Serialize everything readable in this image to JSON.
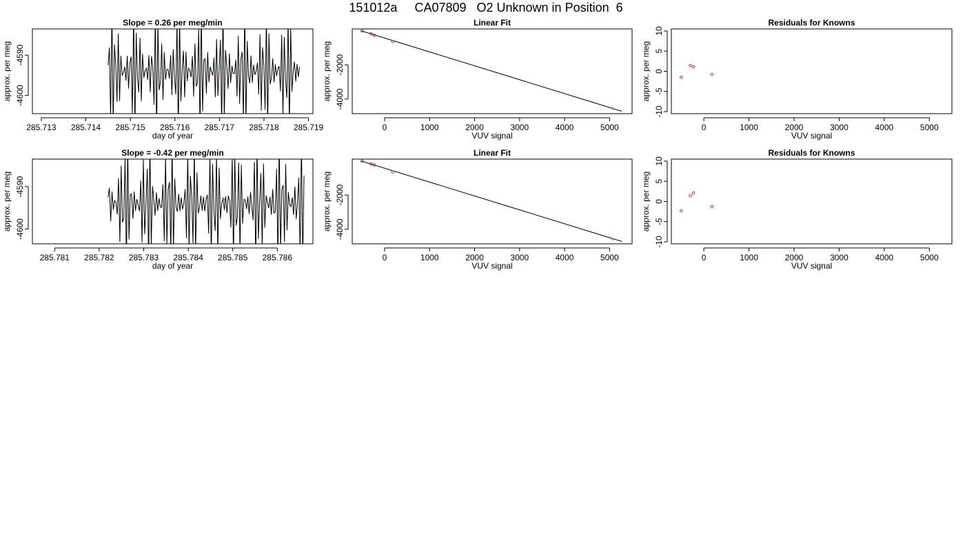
{
  "page": {
    "title": "151012a     CA07809   O2 Unknown in Position  6"
  },
  "colors": {
    "axis": "#000000",
    "trace": "#000000",
    "known_points": "#cc3333",
    "unknown_points": "#33cc33"
  },
  "chart_data": [
    {
      "type": "line",
      "title": "Slope =  0.26  per meg/min",
      "xlabel": "day of year",
      "ylabel": "approx. per meg",
      "xlim": [
        285.7128,
        285.7191
      ],
      "ylim": [
        -4604.5,
        -4583.5
      ],
      "xticks": [
        285.713,
        285.714,
        285.715,
        285.716,
        285.717,
        285.718,
        285.719
      ],
      "xtick_labels": [
        "285.713",
        "285.714",
        "285.715",
        "285.716",
        "285.717",
        "285.718",
        "285.719"
      ],
      "yticks": [
        -4590,
        -4600
      ],
      "ytick_labels": [
        "-4590",
        "-4600"
      ],
      "trace_x_range": [
        285.7145,
        285.7188
      ],
      "trace_center": -4594,
      "unknown_point": {
        "x": 285.717,
        "y": -4593
      }
    },
    {
      "type": "scatter",
      "title": "Linear Fit",
      "xlabel": "VUV signal",
      "ylabel": "approx. per meg",
      "xlim": [
        -720,
        5500
      ],
      "ylim": [
        -4850,
        100
      ],
      "xticks": [
        0,
        1000,
        2000,
        3000,
        4000,
        5000
      ],
      "xtick_labels": [
        "0",
        "1000",
        "2000",
        "3000",
        "4000",
        "5000"
      ],
      "yticks": [
        -2000,
        -4000
      ],
      "ytick_labels": [
        "-2000",
        "-4000"
      ],
      "fit_line": {
        "x": [
          -520,
          5270
        ],
        "y": [
          -10,
          -4710
        ]
      },
      "known": {
        "x": [
          -500,
          -300,
          -230,
          180
        ],
        "y": [
          -20,
          -190,
          -270,
          -640
        ]
      },
      "unknown": {
        "x": [
          5070
        ],
        "y": [
          -4560
        ]
      }
    },
    {
      "type": "scatter",
      "title": "Residuals for Knowns",
      "xlabel": "VUV signal",
      "ylabel": "approx. per meg",
      "xlim": [
        -720,
        5500
      ],
      "ylim": [
        -10.5,
        10.5
      ],
      "xticks": [
        0,
        1000,
        2000,
        3000,
        4000,
        5000
      ],
      "xtick_labels": [
        "0",
        "1000",
        "2000",
        "3000",
        "4000",
        "5000"
      ],
      "yticks": [
        10,
        5,
        0,
        -5,
        -10
      ],
      "ytick_labels": [
        "10",
        "5",
        "0",
        "-5",
        "-10"
      ],
      "known": {
        "x": [
          -500,
          -300,
          -230,
          180
        ],
        "y": [
          -1.5,
          1.4,
          1.1,
          -0.8
        ]
      }
    },
    {
      "type": "line",
      "title": "Slope =  -0.42  per meg/min",
      "xlabel": "day of year",
      "ylabel": "approx. per meg",
      "xlim": [
        285.7805,
        285.7868
      ],
      "ylim": [
        -4603.5,
        -4583.5
      ],
      "xticks": [
        285.781,
        285.782,
        285.783,
        285.784,
        285.785,
        285.786
      ],
      "xtick_labels": [
        "285.781",
        "285.782",
        "285.783",
        "285.784",
        "285.785",
        "285.786"
      ],
      "yticks": [
        -4590,
        -4600
      ],
      "ytick_labels": [
        "-4590",
        "-4600"
      ],
      "trace_x_range": [
        285.7822,
        285.7866
      ],
      "trace_center": -4594,
      "unknown_point": {
        "x": 285.7848,
        "y": -4593
      }
    },
    {
      "type": "scatter",
      "title": "Linear Fit",
      "xlabel": "VUV signal",
      "ylabel": "approx. per meg",
      "xlim": [
        -720,
        5500
      ],
      "ylim": [
        -4850,
        100
      ],
      "xticks": [
        0,
        1000,
        2000,
        3000,
        4000,
        5000
      ],
      "xtick_labels": [
        "0",
        "1000",
        "2000",
        "3000",
        "4000",
        "5000"
      ],
      "yticks": [
        -2000,
        -4000
      ],
      "ytick_labels": [
        "-2000",
        "-4000"
      ],
      "fit_line": {
        "x": [
          -520,
          5270
        ],
        "y": [
          -10,
          -4710
        ]
      },
      "known": {
        "x": [
          -500,
          -300,
          -230,
          180
        ],
        "y": [
          -20,
          -190,
          -240,
          -650
        ]
      },
      "unknown": {
        "x": [
          5070
        ],
        "y": [
          -4560
        ]
      }
    },
    {
      "type": "scatter",
      "title": "Residuals for Knowns",
      "xlabel": "VUV signal",
      "ylabel": "approx. per meg",
      "xlim": [
        -720,
        5500
      ],
      "ylim": [
        -10.5,
        10.5
      ],
      "xticks": [
        0,
        1000,
        2000,
        3000,
        4000,
        5000
      ],
      "xtick_labels": [
        "0",
        "1000",
        "2000",
        "3000",
        "4000",
        "5000"
      ],
      "yticks": [
        10,
        5,
        0,
        -5,
        -10
      ],
      "ytick_labels": [
        "10",
        "5",
        "0",
        "-5",
        "-10"
      ],
      "known": {
        "x": [
          -500,
          -300,
          -230,
          180
        ],
        "y": [
          -2.3,
          1.4,
          2.1,
          -1.3
        ]
      }
    }
  ]
}
